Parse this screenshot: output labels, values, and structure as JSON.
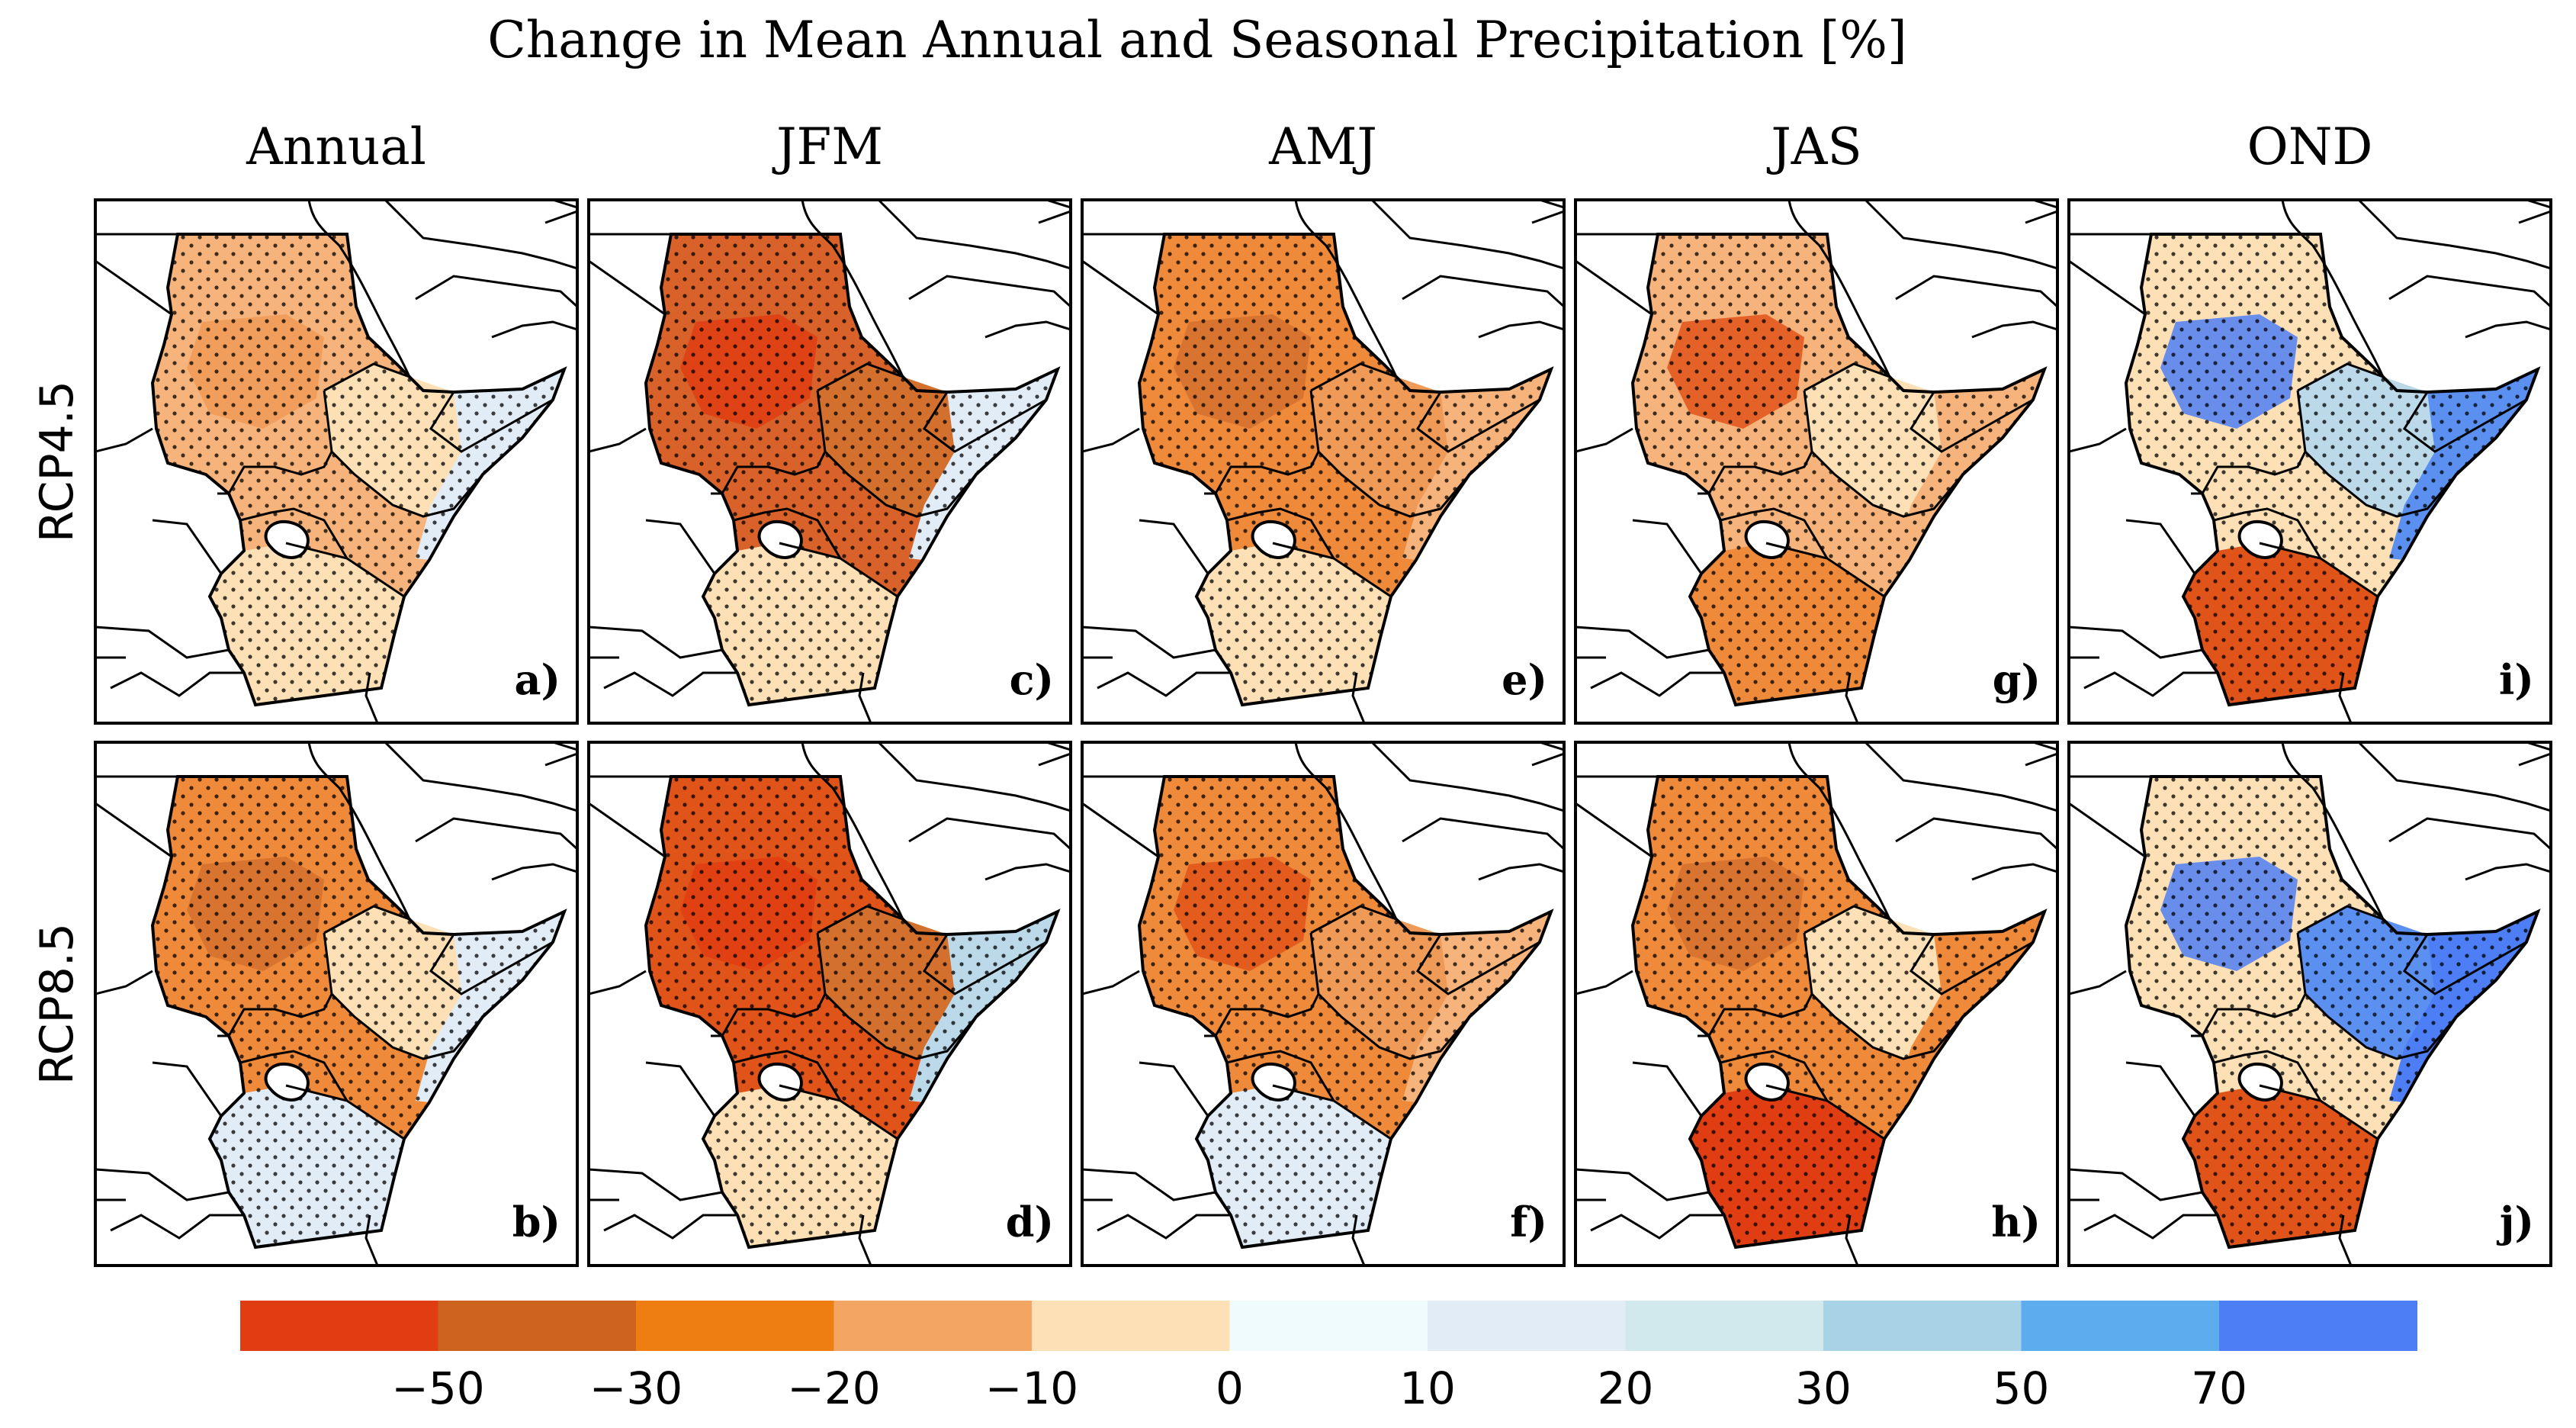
{
  "figure": {
    "title": "Change in Mean Annual and Seasonal Precipitation [%]",
    "columns": [
      "Annual",
      "JFM",
      "AMJ",
      "JAS",
      "OND"
    ],
    "rows": [
      "RCP4.5",
      "RCP8.5"
    ],
    "panels": [
      {
        "label": "a)",
        "row": 0,
        "col": 0,
        "base": "#f6b47c",
        "ethiopia": "#fde0b6",
        "east": "#e2ecf7",
        "south": "#fde0b6",
        "accent": "#f09a58",
        "stipple": true
      },
      {
        "label": "c)",
        "row": 0,
        "col": 1,
        "base": "#d8622a",
        "ethiopia": "#d4702e",
        "east": "#e2ecf7",
        "south": "#fde0b6",
        "accent": "#e03d12",
        "stipple": true
      },
      {
        "label": "e)",
        "row": 0,
        "col": 2,
        "base": "#ee8a3a",
        "ethiopia": "#f09a58",
        "east": "#f6b47c",
        "south": "#fde0b6",
        "accent": "#d4702e",
        "stipple": true
      },
      {
        "label": "g)",
        "row": 0,
        "col": 3,
        "base": "#f6b47c",
        "ethiopia": "#fde0b6",
        "east": "#f6b47c",
        "south": "#ee8a3a",
        "accent": "#e0541a",
        "stipple": true
      },
      {
        "label": "i)",
        "row": 0,
        "col": 4,
        "base": "#fde0b6",
        "ethiopia": "#bcd9ea",
        "east": "#5b8ff0",
        "south": "#e0541a",
        "accent": "#4d7ef5",
        "stipple": true
      },
      {
        "label": "b)",
        "row": 1,
        "col": 0,
        "base": "#ee8a3a",
        "ethiopia": "#fde0b6",
        "east": "#e2ecf7",
        "south": "#e2ecf7",
        "accent": "#d4702e",
        "stipple": true
      },
      {
        "label": "d)",
        "row": 1,
        "col": 1,
        "base": "#e0541a",
        "ethiopia": "#d4702e",
        "east": "#bcd9ea",
        "south": "#fde0b6",
        "accent": "#e03d12",
        "stipple": true
      },
      {
        "label": "f)",
        "row": 1,
        "col": 2,
        "base": "#ee8a3a",
        "ethiopia": "#f09a58",
        "east": "#f6b47c",
        "south": "#e2ecf7",
        "accent": "#e0541a",
        "stipple": true
      },
      {
        "label": "h)",
        "row": 1,
        "col": 3,
        "base": "#ee8a3a",
        "ethiopia": "#fde0b6",
        "east": "#ee8a3a",
        "south": "#e03d12",
        "accent": "#d4702e",
        "stipple": true
      },
      {
        "label": "j)",
        "row": 1,
        "col": 4,
        "base": "#fde0b6",
        "ethiopia": "#5b8ff0",
        "east": "#4d7ef5",
        "south": "#e0541a",
        "accent": "#4d7ef5",
        "stipple": true
      }
    ]
  },
  "colorbar": {
    "colors": [
      "#e03d12",
      "#cc6420",
      "#ee7d12",
      "#f3a664",
      "#fde0b6",
      "#f0fbfd",
      "#e2ecf7",
      "#d1e9ec",
      "#a8d3e6",
      "#5dadee",
      "#4d7ef5"
    ],
    "tick_labels": [
      "−50",
      "−30",
      "−20",
      "−10",
      "0",
      "10",
      "20",
      "30",
      "50",
      "70"
    ]
  }
}
